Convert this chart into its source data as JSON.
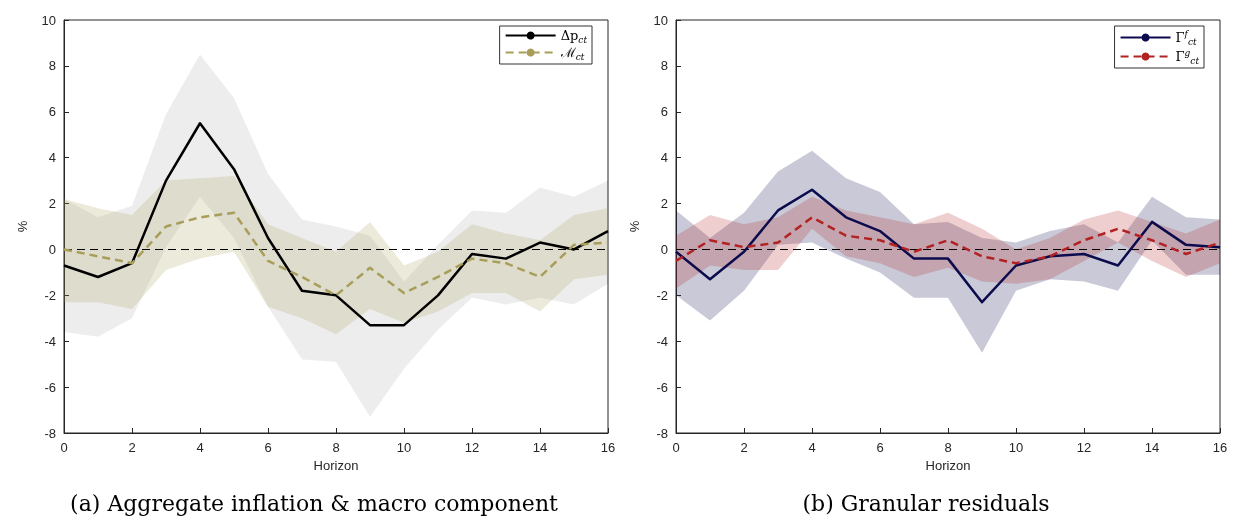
{
  "chart_data": [
    {
      "type": "line",
      "title": "(a) Aggregate inflation & macro component",
      "xlabel": "Horizon",
      "ylabel": "%",
      "x": [
        0,
        1,
        2,
        3,
        4,
        5,
        6,
        7,
        8,
        9,
        10,
        11,
        12,
        13,
        14,
        15,
        16
      ],
      "series": [
        {
          "name": "Δp$_{ct}$",
          "color": "#000000",
          "line_style": "solid",
          "values": [
            -0.7,
            -1.2,
            -0.6,
            3.0,
            5.5,
            3.5,
            0.5,
            -1.8,
            -2.0,
            -3.3,
            -3.3,
            -2.0,
            -0.2,
            -0.4,
            0.3,
            0.0,
            0.8
          ],
          "lower": [
            -3.6,
            -3.8,
            -3.0,
            0.1,
            2.3,
            0.5,
            -2.5,
            -4.8,
            -4.9,
            -7.3,
            -5.2,
            -3.5,
            -2.1,
            -2.4,
            -2.1,
            -2.4,
            -1.5
          ],
          "upper": [
            2.2,
            1.4,
            1.9,
            5.9,
            8.5,
            6.6,
            3.3,
            1.3,
            1.0,
            0.6,
            -1.4,
            0.2,
            1.7,
            1.6,
            2.7,
            2.3,
            3.0
          ]
        },
        {
          "name": "ℳ$_{ct}$",
          "color": "#a89e5a",
          "line_style": "dashed",
          "values": [
            0.0,
            -0.3,
            -0.6,
            1.0,
            1.4,
            1.6,
            -0.5,
            -1.2,
            -2.0,
            -0.8,
            -1.9,
            -1.2,
            -0.4,
            -0.6,
            -1.2,
            0.2,
            0.3
          ],
          "lower": [
            -2.3,
            -2.3,
            -2.6,
            -0.9,
            -0.4,
            -0.1,
            -2.5,
            -3.0,
            -3.7,
            -2.6,
            -3.2,
            -2.7,
            -1.9,
            -1.9,
            -2.7,
            -1.3,
            -1.1
          ],
          "upper": [
            2.2,
            1.8,
            1.5,
            3.0,
            3.1,
            3.2,
            1.1,
            0.5,
            -0.1,
            1.2,
            -0.7,
            -0.1,
            1.1,
            0.7,
            0.4,
            1.5,
            1.8
          ]
        }
      ],
      "xlim": [
        0,
        16
      ],
      "xticks": [
        0,
        2,
        4,
        6,
        8,
        10,
        12,
        14,
        16
      ],
      "ylim": [
        -8,
        10
      ],
      "yticks": [
        -8,
        -6,
        -4,
        -2,
        0,
        2,
        4,
        6,
        8,
        10
      ],
      "ref_lines": [
        {
          "axis": "y",
          "value": 0,
          "color": "#000000",
          "line_style": "dashed"
        }
      ],
      "grid": false,
      "legend": "top right",
      "marker": "none"
    },
    {
      "type": "line",
      "title": "(b) Granular residuals",
      "xlabel": "Horizon",
      "ylabel": "%",
      "x": [
        0,
        1,
        2,
        3,
        4,
        5,
        6,
        7,
        8,
        9,
        10,
        11,
        12,
        13,
        14,
        15,
        16
      ],
      "series": [
        {
          "name": "Γ$^{f}$$_{ct}$",
          "color": "#0b0b4d",
          "line_style": "solid",
          "values": [
            -0.1,
            -1.3,
            -0.1,
            1.7,
            2.6,
            1.4,
            0.8,
            -0.4,
            -0.4,
            -2.3,
            -0.7,
            -0.3,
            -0.2,
            -0.7,
            1.2,
            0.2,
            0.1
          ],
          "lower": [
            -2.0,
            -3.1,
            -1.8,
            0.2,
            0.3,
            -0.4,
            -1.0,
            -2.1,
            -2.1,
            -4.5,
            -1.8,
            -1.3,
            -1.4,
            -1.8,
            0.4,
            -1.1,
            -1.1
          ],
          "upper": [
            1.7,
            0.5,
            1.6,
            3.4,
            4.3,
            3.1,
            2.5,
            1.1,
            1.2,
            0.5,
            0.3,
            0.8,
            1.1,
            0.3,
            2.3,
            1.4,
            1.3
          ]
        },
        {
          "name": "Γ$^{g}$$_{ct}$",
          "color": "#b22222",
          "line_style": "dashed",
          "values": [
            -0.5,
            0.4,
            0.1,
            0.3,
            1.4,
            0.6,
            0.4,
            -0.1,
            0.4,
            -0.3,
            -0.6,
            -0.3,
            0.4,
            0.9,
            0.4,
            -0.2,
            0.3
          ],
          "lower": [
            -1.7,
            -0.7,
            -0.9,
            -0.9,
            0.9,
            -0.3,
            -0.6,
            -1.2,
            -0.8,
            -1.4,
            -1.5,
            -1.3,
            -0.5,
            0.3,
            -0.5,
            -1.2,
            -0.6
          ],
          "upper": [
            0.6,
            1.5,
            1.1,
            1.4,
            2.3,
            1.7,
            1.4,
            1.1,
            1.6,
            0.9,
            0.0,
            0.5,
            1.3,
            1.7,
            1.2,
            0.7,
            1.3
          ]
        }
      ],
      "xlim": [
        0,
        16
      ],
      "xticks": [
        0,
        2,
        4,
        6,
        8,
        10,
        12,
        14,
        16
      ],
      "ylim": [
        -8,
        10
      ],
      "yticks": [
        -8,
        -6,
        -4,
        -2,
        0,
        2,
        4,
        6,
        8,
        10
      ],
      "ref_lines": [
        {
          "axis": "y",
          "value": 0,
          "color": "#000000",
          "line_style": "dashed"
        }
      ],
      "grid": false,
      "legend": "top right",
      "marker": "none"
    }
  ]
}
